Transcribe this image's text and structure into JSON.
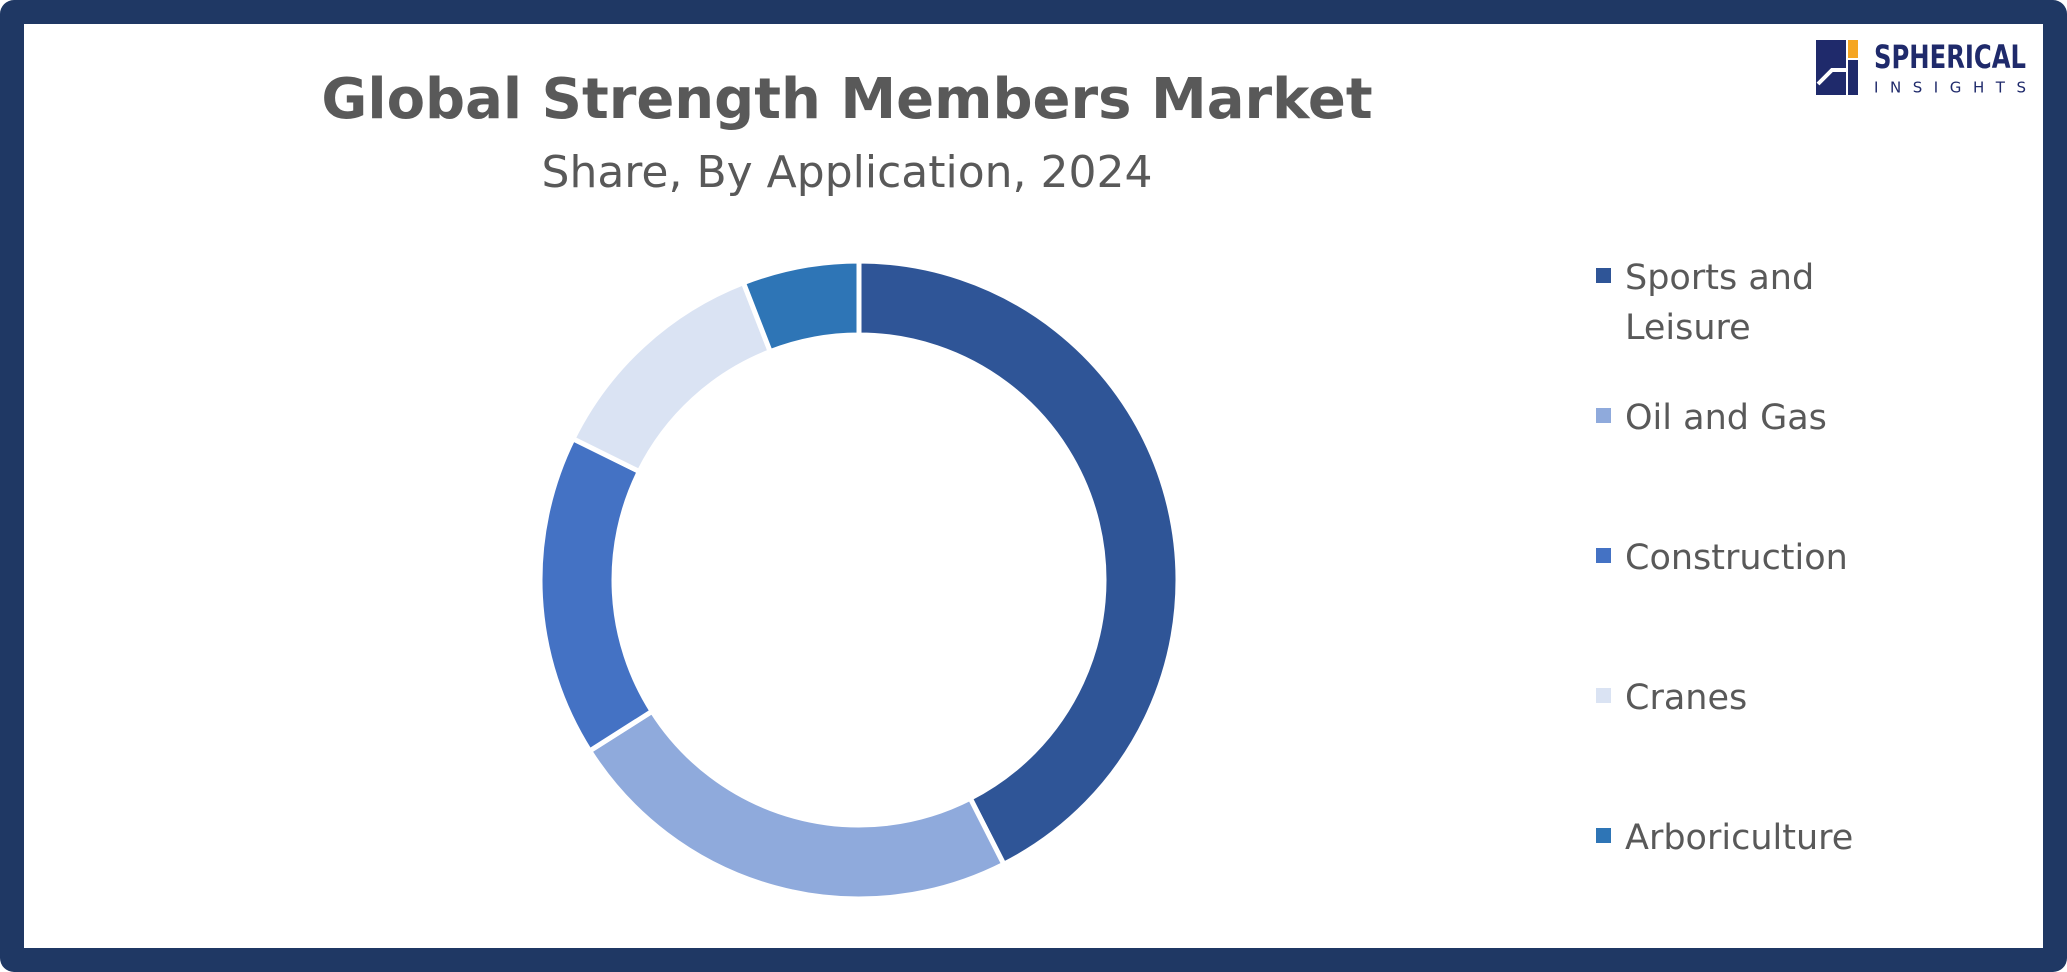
{
  "chart_data": {
    "type": "donut",
    "title": "Global Strength Members Market",
    "subtitle": "Share, By Application, 2024",
    "categories": [
      "Sports and Leisure",
      "Oil and Gas",
      "Construction",
      "Cranes",
      "Arboriculture"
    ],
    "values": [
      42.5,
      23.5,
      16.3,
      11.8,
      5.9
    ],
    "colors": [
      "#2f5597",
      "#8faadc",
      "#4472c4",
      "#dae3f3",
      "#2e75b6"
    ],
    "legend": "right"
  },
  "logo": {
    "name": "SPHERICAL",
    "tagline": "INSIGHTS"
  }
}
